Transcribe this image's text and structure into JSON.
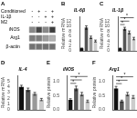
{
  "chart_data": [
    {
      "type": "heatmap",
      "title": "A",
      "header_labels": [
        "Conditioned",
        "IL-1β",
        "M2"
      ],
      "categories": [
        [
          "-",
          "-",
          "-"
        ],
        [
          "+",
          "-",
          "-"
        ],
        [
          "-",
          "+",
          "-"
        ],
        [
          "+",
          "+",
          "+"
        ]
      ],
      "series": [
        {
          "name": "iNOS",
          "values": [
            0.55,
            0.85,
            0.55,
            0.9
          ]
        },
        {
          "name": "Arg1",
          "values": [
            0.6,
            0.6,
            0.45,
            0.35
          ]
        },
        {
          "name": "β-actin",
          "values": [
            0.65,
            0.65,
            0.65,
            0.65
          ]
        }
      ]
    },
    {
      "type": "bar",
      "title": "B",
      "subtitle": "IL-6β",
      "ylabel": "Relative mRNA",
      "categories": [
        null,
        null,
        null,
        null
      ],
      "values": [
        1.0,
        9.5,
        5.5,
        4.0
      ],
      "errors": [
        0.15,
        0.7,
        0.5,
        0.4
      ],
      "colors": [
        "#111111",
        "#555555",
        "#999999",
        "#cccccc"
      ],
      "ylim": [
        0,
        14
      ],
      "yticks": [
        0,
        2,
        4,
        6,
        8,
        10,
        12
      ],
      "grid": false,
      "tick_labels": "y"
    },
    {
      "type": "bar",
      "title": "C",
      "subtitle": "IL-1β",
      "ylabel": "Relative mRNA",
      "categories": [
        null,
        null,
        null,
        null
      ],
      "values": [
        1.0,
        9.0,
        7.5,
        5.0
      ],
      "errors": [
        0.15,
        0.6,
        0.6,
        0.5
      ],
      "colors": [
        "#111111",
        "#555555",
        "#999999",
        "#cccccc"
      ],
      "ylim": [
        0,
        14
      ],
      "yticks": [
        0,
        2,
        4,
        6,
        8,
        10,
        12
      ],
      "annotations": [
        {
          "text": "*",
          "from": 0,
          "to": 1,
          "y": 10.72
        },
        {
          "text": "*",
          "from": 0,
          "to": 2,
          "y": 12.12
        },
        {
          "text": "*",
          "from": 0,
          "to": 3,
          "y": 13.52
        }
      ],
      "grid": false,
      "tick_labels": "y"
    },
    {
      "type": "bar",
      "title": "D",
      "subtitle": "IL-4",
      "ylabel": "Relative mRNA",
      "categories": [
        null,
        null,
        null,
        null
      ],
      "values": [
        4.0,
        3.5,
        2.8,
        1.8
      ],
      "errors": [
        0.3,
        0.3,
        0.25,
        0.2
      ],
      "colors": [
        "#111111",
        "#555555",
        "#999999",
        "#cccccc"
      ],
      "ylim": [
        0,
        6
      ],
      "yticks": [
        0,
        1,
        2,
        3,
        4,
        5
      ],
      "grid": false,
      "tick_labels": "y"
    },
    {
      "type": "bar",
      "title": "E",
      "subtitle": "iNOS",
      "ylabel": "Relative protein",
      "categories": [
        null,
        null,
        null,
        null
      ],
      "values": [
        0.35,
        0.75,
        0.55,
        0.3
      ],
      "errors": [
        0.04,
        0.08,
        0.06,
        0.04
      ],
      "colors": [
        "#111111",
        "#555555",
        "#999999",
        "#cccccc"
      ],
      "ylim": [
        0,
        1.2
      ],
      "yticks": [
        {
          "value": 0.0,
          "label": "0.0"
        },
        {
          "value": 0.5,
          "label": "0.5"
        },
        {
          "value": 1.0,
          "label": "1.0"
        }
      ],
      "annotations": [
        {
          "text": "*",
          "from": 0,
          "to": 1,
          "y": 0.926
        },
        {
          "text": "*",
          "from": 0,
          "to": 2,
          "y": 1.046
        },
        {
          "text": "*",
          "from": 0,
          "to": 3,
          "y": 1.166
        }
      ],
      "grid": false,
      "tick_labels": "y"
    },
    {
      "type": "bar",
      "title": "F",
      "subtitle": "Arg1",
      "ylabel": "Relative protein",
      "categories": [
        null,
        null,
        null,
        null
      ],
      "values": [
        0.75,
        0.3,
        0.55,
        0.45
      ],
      "errors": [
        0.07,
        0.04,
        0.06,
        0.05
      ],
      "colors": [
        "#111111",
        "#555555",
        "#999999",
        "#cccccc"
      ],
      "ylim": [
        0,
        1.2
      ],
      "yticks": [
        {
          "value": 0.0,
          "label": "0.0"
        },
        {
          "value": 0.5,
          "label": "0.5"
        },
        {
          "value": 1.0,
          "label": "1.0"
        }
      ],
      "annotations": [
        {
          "text": "*",
          "from": 0,
          "to": 1,
          "y": 0.916
        },
        {
          "text": "*",
          "from": 0,
          "to": 2,
          "y": 1.036
        },
        {
          "text": "*",
          "from": 0,
          "to": 3,
          "y": 1.156
        }
      ],
      "grid": false,
      "tick_labels": "y"
    }
  ]
}
